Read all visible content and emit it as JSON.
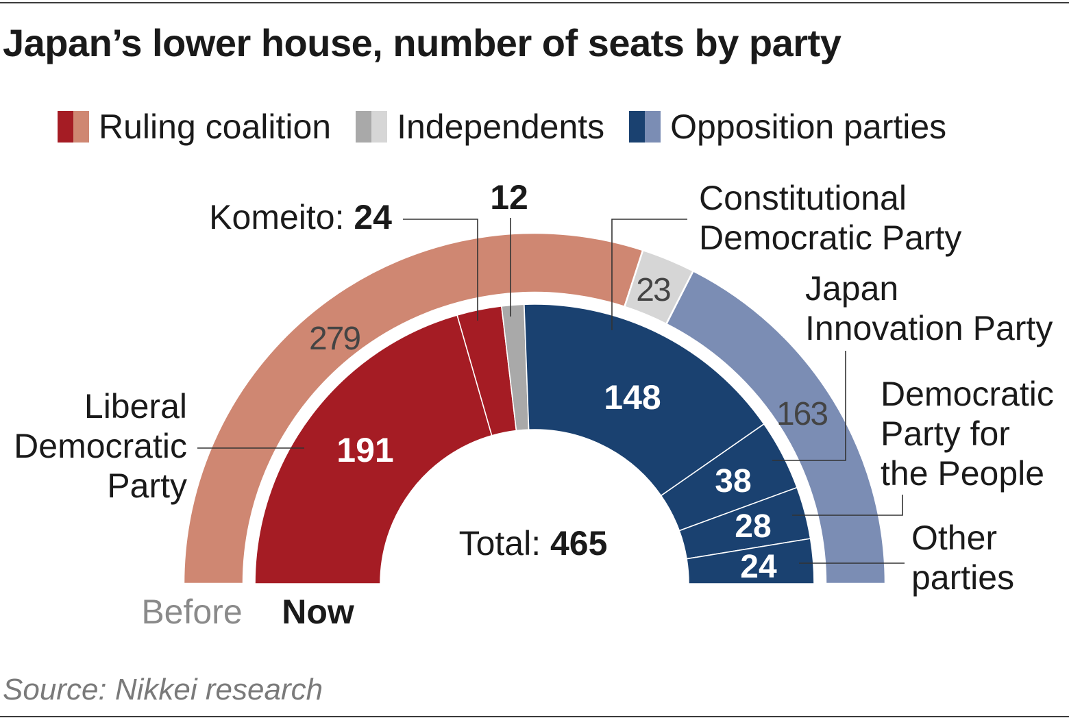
{
  "title": "Japan’s lower house, number of seats by party",
  "legend": [
    {
      "label": "Ruling coalition",
      "colors": [
        "#a51c24",
        "#cf8772"
      ]
    },
    {
      "label": "Independents",
      "colors": [
        "#a9a9a9",
        "#d6d6d6"
      ]
    },
    {
      "label": "Opposition parties",
      "colors": [
        "#1a4170",
        "#7b8db4"
      ]
    }
  ],
  "source": "Source: Nikkei research",
  "chart_data": {
    "type": "pie",
    "total_label": "Total:",
    "total": 465,
    "rings": [
      {
        "name": "Before",
        "segments": [
          {
            "group": "Ruling coalition",
            "value": 279,
            "label": "279",
            "color": "#cf8772"
          },
          {
            "group": "Independents",
            "value": 23,
            "label": "23",
            "color": "#d6d6d6"
          },
          {
            "group": "Opposition parties",
            "value": 163,
            "label": "163",
            "color": "#7b8db4"
          }
        ]
      },
      {
        "name": "Now",
        "segments": [
          {
            "party": "Liberal Democratic Party",
            "group": "Ruling coalition",
            "value": 191,
            "label": "191",
            "color": "#a51c24"
          },
          {
            "party": "Komeito",
            "group": "Ruling coalition",
            "value": 24,
            "label": "",
            "color": "#a51c24"
          },
          {
            "party": "Independents",
            "group": "Independents",
            "value": 12,
            "label": "",
            "color": "#a9a9a9"
          },
          {
            "party": "Constitutional Democratic Party",
            "group": "Opposition parties",
            "value": 148,
            "label": "148",
            "color": "#1a4170"
          },
          {
            "party": "Japan Innovation Party",
            "group": "Opposition parties",
            "value": 38,
            "label": "38",
            "color": "#1a4170"
          },
          {
            "party": "Democratic Party for the People",
            "group": "Opposition parties",
            "value": 28,
            "label": "28",
            "color": "#1a4170"
          },
          {
            "party": "Other parties",
            "group": "Opposition parties",
            "value": 24,
            "label": "24",
            "color": "#1a4170"
          }
        ]
      }
    ],
    "callouts": {
      "ldp": [
        "Liberal",
        "Democratic",
        "Party"
      ],
      "komeito_name": "Komeito:",
      "komeito_value": "24",
      "independents_value": "12",
      "cdp": [
        "Constitutional",
        "Democratic Party"
      ],
      "jip": [
        "Japan",
        "Innovation Party"
      ],
      "dpp": [
        "Democratic",
        "Party for",
        "the People"
      ],
      "other": [
        "Other",
        "parties"
      ]
    }
  }
}
